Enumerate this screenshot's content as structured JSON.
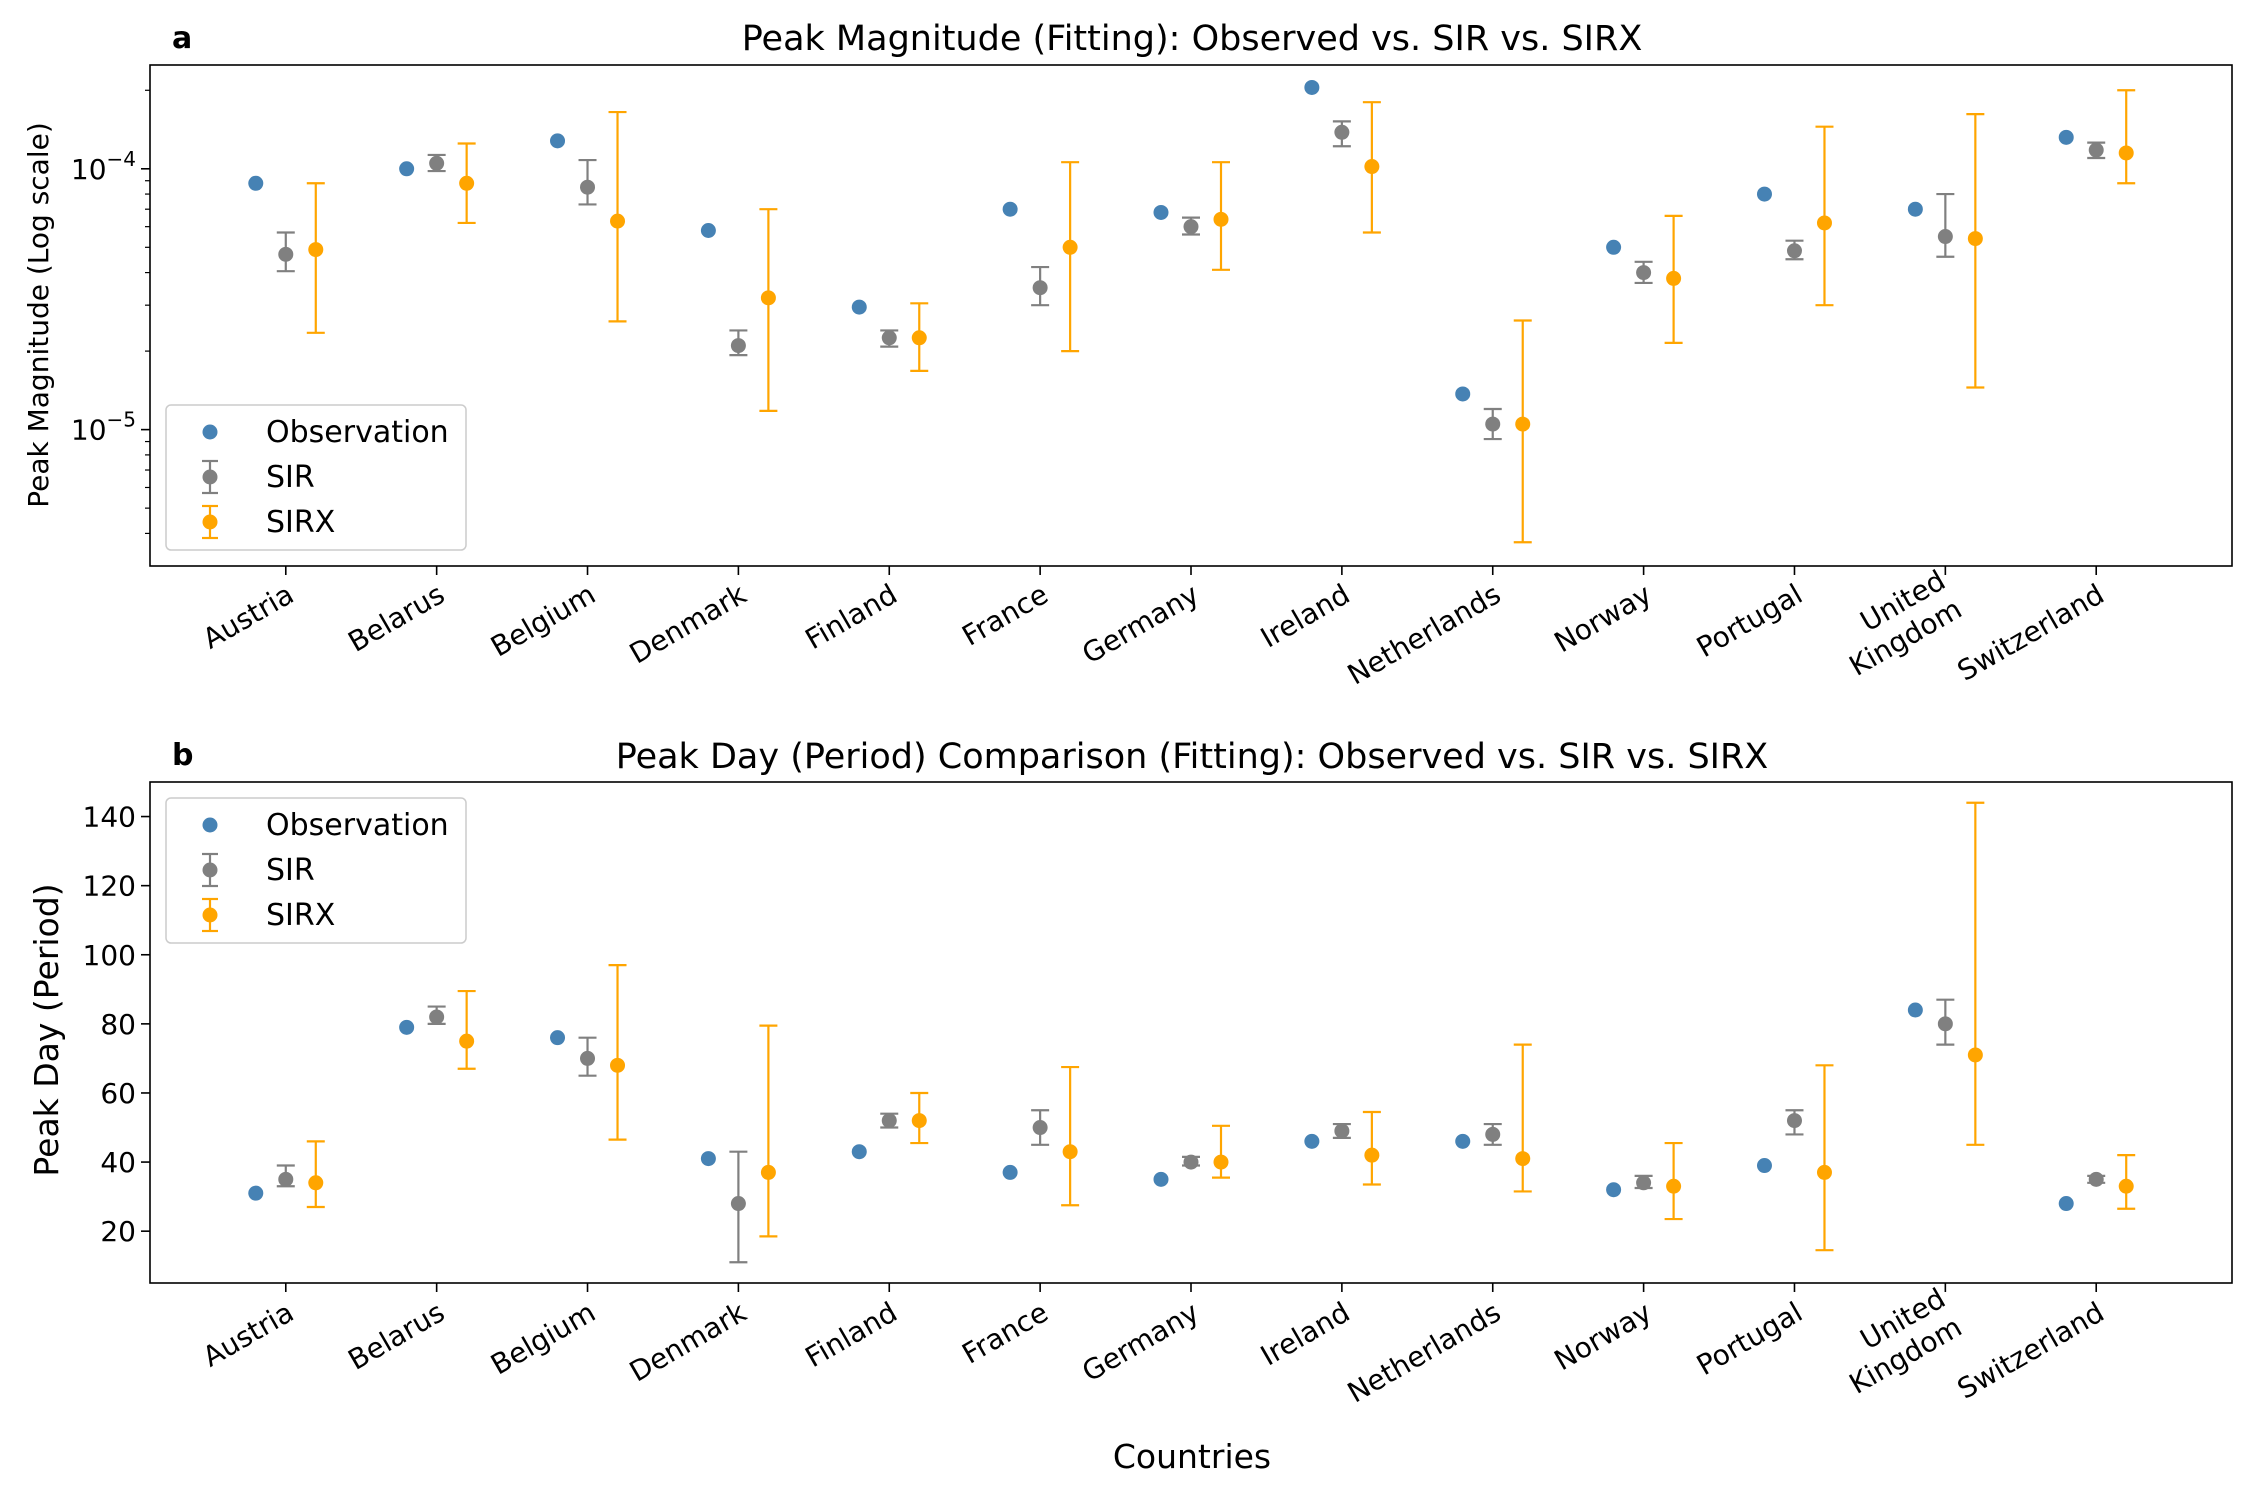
{
  "figure": {
    "xlabel": "Countries"
  },
  "colors": {
    "observation": "#4682b4",
    "sir": "#808080",
    "sirx": "#ffa500"
  },
  "chart_data": [
    {
      "type": "scatter",
      "panel": "a",
      "title": "Peak Magnitude (Fitting): Observed vs. SIR vs. SIRX",
      "xlabel": "",
      "ylabel": "Peak Magnitude (Log scale)",
      "yscale": "log",
      "ylim": [
        3e-06,
        0.00025
      ],
      "yticks": [
        {
          "value": 1e-05,
          "base": "10",
          "exp": "−5"
        },
        {
          "value": 0.0001,
          "base": "10",
          "exp": "−4"
        }
      ],
      "categories": [
        "Austria",
        "Belarus",
        "Belgium",
        "Denmark",
        "Finland",
        "France",
        "Germany",
        "Ireland",
        "Netherlands",
        "Norway",
        "Portugal",
        "United Kingdom",
        "Switzerland"
      ],
      "legend": {
        "position": "lower-left",
        "entries": [
          "Observation",
          "SIR",
          "SIRX"
        ]
      },
      "series": [
        {
          "name": "Observation",
          "style": "point",
          "values": [
            8.8e-05,
            0.0001,
            0.000128,
            5.8e-05,
            2.95e-05,
            7e-05,
            6.8e-05,
            0.000205,
            1.37e-05,
            5e-05,
            8e-05,
            7e-05,
            0.000132
          ]
        },
        {
          "name": "SIR",
          "style": "errorbar",
          "values": [
            4.7e-05,
            0.000105,
            8.5e-05,
            2.1e-05,
            2.25e-05,
            3.5e-05,
            6e-05,
            0.000138,
            1.05e-05,
            4e-05,
            4.85e-05,
            5.5e-05,
            0.000118
          ],
          "lower": [
            4.05e-05,
            9.8e-05,
            7.3e-05,
            1.93e-05,
            2.08e-05,
            3e-05,
            5.6e-05,
            0.000122,
            9.2e-06,
            3.65e-05,
            4.5e-05,
            4.6e-05,
            0.00011
          ],
          "upper": [
            5.7e-05,
            0.000113,
            0.000108,
            2.4e-05,
            2.4e-05,
            4.2e-05,
            6.5e-05,
            0.000152,
            1.2e-05,
            4.4e-05,
            5.3e-05,
            8e-05,
            0.000126
          ]
        },
        {
          "name": "SIRX",
          "style": "errorbar",
          "values": [
            4.9e-05,
            8.8e-05,
            6.3e-05,
            3.2e-05,
            2.25e-05,
            5e-05,
            6.4e-05,
            0.000102,
            1.05e-05,
            3.8e-05,
            6.2e-05,
            5.4e-05,
            0.000115
          ],
          "lower": [
            2.35e-05,
            6.2e-05,
            2.6e-05,
            1.18e-05,
            1.68e-05,
            2e-05,
            4.1e-05,
            5.7e-05,
            3.7e-06,
            2.15e-05,
            3e-05,
            1.45e-05,
            8.8e-05
          ],
          "upper": [
            8.8e-05,
            0.000125,
            0.000165,
            7e-05,
            3.05e-05,
            0.000106,
            0.000106,
            0.00018,
            2.62e-05,
            6.6e-05,
            0.000145,
            0.000162,
            0.0002
          ]
        }
      ]
    },
    {
      "type": "scatter",
      "panel": "b",
      "title": "Peak Day (Period) Comparison (Fitting): Observed vs. SIR vs. SIRX",
      "xlabel": "Countries",
      "ylabel": "Peak Day (Period)",
      "yscale": "linear",
      "ylim": [
        5,
        150
      ],
      "yticks": [
        {
          "value": 20,
          "label": "20"
        },
        {
          "value": 40,
          "label": "40"
        },
        {
          "value": 60,
          "label": "60"
        },
        {
          "value": 80,
          "label": "80"
        },
        {
          "value": 100,
          "label": "100"
        },
        {
          "value": 120,
          "label": "120"
        },
        {
          "value": 140,
          "label": "140"
        }
      ],
      "categories": [
        "Austria",
        "Belarus",
        "Belgium",
        "Denmark",
        "Finland",
        "France",
        "Germany",
        "Ireland",
        "Netherlands",
        "Norway",
        "Portugal",
        "United Kingdom",
        "Switzerland"
      ],
      "legend": {
        "position": "upper-left",
        "entries": [
          "Observation",
          "SIR",
          "SIRX"
        ]
      },
      "series": [
        {
          "name": "Observation",
          "style": "point",
          "values": [
            31,
            79,
            76,
            41,
            43,
            37,
            35,
            46,
            46,
            32,
            39,
            84,
            28
          ]
        },
        {
          "name": "SIR",
          "style": "errorbar",
          "values": [
            35,
            82,
            70,
            28,
            52,
            50,
            40,
            49,
            48,
            34,
            52,
            80,
            35
          ],
          "lower": [
            33,
            80,
            65,
            11,
            50,
            45,
            39,
            47,
            45,
            32.5,
            48,
            74,
            34
          ],
          "upper": [
            39,
            85,
            76,
            43,
            54,
            55,
            41.5,
            51,
            51,
            36,
            55,
            87,
            36
          ]
        },
        {
          "name": "SIRX",
          "style": "errorbar",
          "values": [
            34,
            75,
            68,
            37,
            52,
            43,
            40,
            42,
            41,
            33,
            37,
            71,
            33
          ],
          "lower": [
            27,
            67,
            46.5,
            18.5,
            45.5,
            27.5,
            35.5,
            33.5,
            31.5,
            23.5,
            14.5,
            45,
            26.5
          ],
          "upper": [
            46,
            89.5,
            97,
            79.5,
            60,
            67.5,
            50.5,
            54.5,
            74,
            45.5,
            68,
            144,
            42
          ]
        }
      ]
    }
  ]
}
